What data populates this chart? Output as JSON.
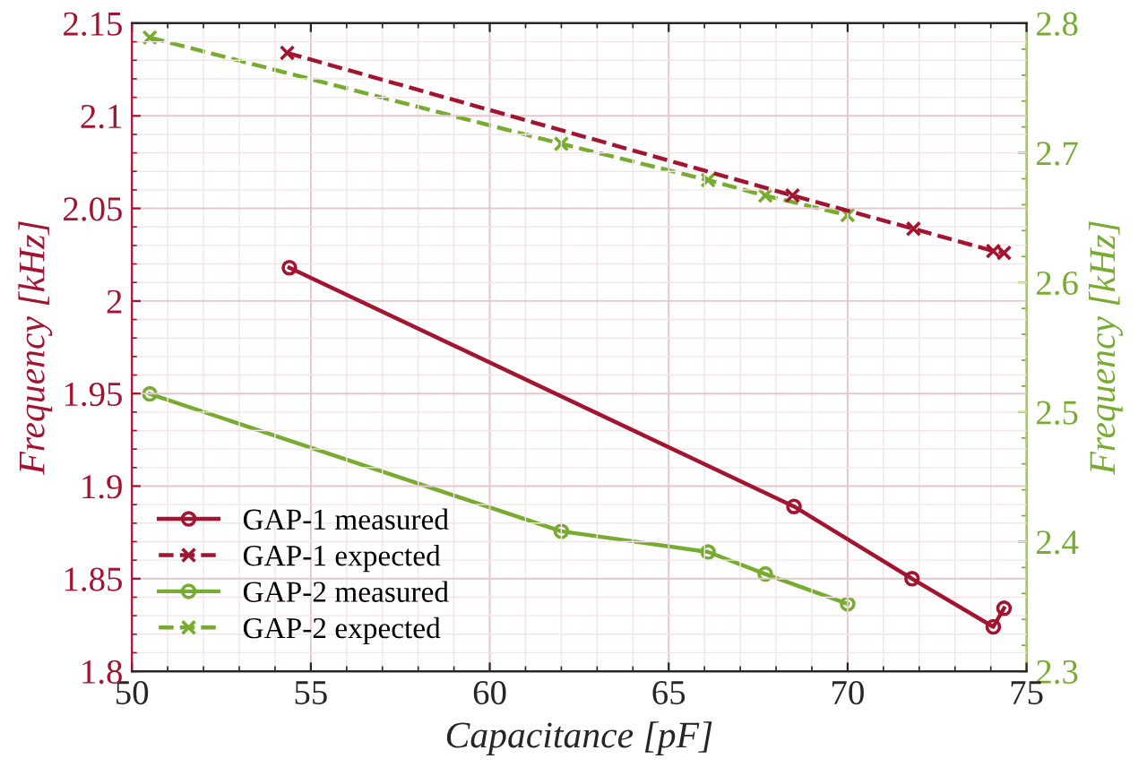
{
  "chart_data": {
    "type": "line",
    "xlabel": "Capacitance [pF]",
    "ylabel": "Frequency [kHz]",
    "y2label": "Frequency [kHz]",
    "xlim": [
      50,
      75
    ],
    "xticks": [
      50,
      55,
      60,
      65,
      70,
      75
    ],
    "ylim": [
      1.8,
      2.15
    ],
    "yticks": [
      {
        "value": 1.8,
        "label": "1.8"
      },
      {
        "value": 1.85,
        "label": "1.85"
      },
      {
        "value": 1.9,
        "label": "1.9"
      },
      {
        "value": 1.95,
        "label": "1.95"
      },
      {
        "value": 2.0,
        "label": "2"
      },
      {
        "value": 2.05,
        "label": "2.05"
      },
      {
        "value": 2.1,
        "label": "2.1"
      },
      {
        "value": 2.15,
        "label": "2.15"
      }
    ],
    "y2lim": [
      2.3,
      2.8
    ],
    "y2ticks": [
      2.3,
      2.4,
      2.5,
      2.6,
      2.7,
      2.8
    ],
    "grid": true,
    "legend": "bottom left",
    "series": [
      {
        "name": "GAP-1 measured",
        "color": "#a2142f",
        "axis": "y",
        "marker": "circle",
        "line_style": "solid",
        "x": [
          54.4,
          68.5,
          71.8,
          74.07,
          74.37
        ],
        "values": [
          2.018,
          1.889,
          1.85,
          1.824,
          1.834
        ]
      },
      {
        "name": "GAP-1 expected",
        "color": "#a2142f",
        "axis": "y",
        "marker": "cross",
        "line_style": "dashed",
        "x": [
          54.34,
          68.46,
          71.84,
          74.07,
          74.37
        ],
        "values": [
          2.134,
          2.057,
          2.039,
          2.027,
          2.026
        ]
      },
      {
        "name": "GAP-2 measured",
        "color": "#77ac30",
        "axis": "y2",
        "marker": "circle",
        "line_style": "solid",
        "x": [
          50.5,
          62.0,
          66.1,
          67.7,
          70.0
        ],
        "values": [
          2.514,
          2.408,
          2.392,
          2.375,
          2.352
        ]
      },
      {
        "name": "GAP-2 expected",
        "color": "#77ac30",
        "axis": "y2",
        "marker": "cross",
        "line_style": "dashed",
        "x": [
          50.5,
          62.0,
          66.1,
          67.7,
          70.0
        ],
        "values": [
          2.789,
          2.707,
          2.679,
          2.667,
          2.652
        ]
      }
    ]
  }
}
